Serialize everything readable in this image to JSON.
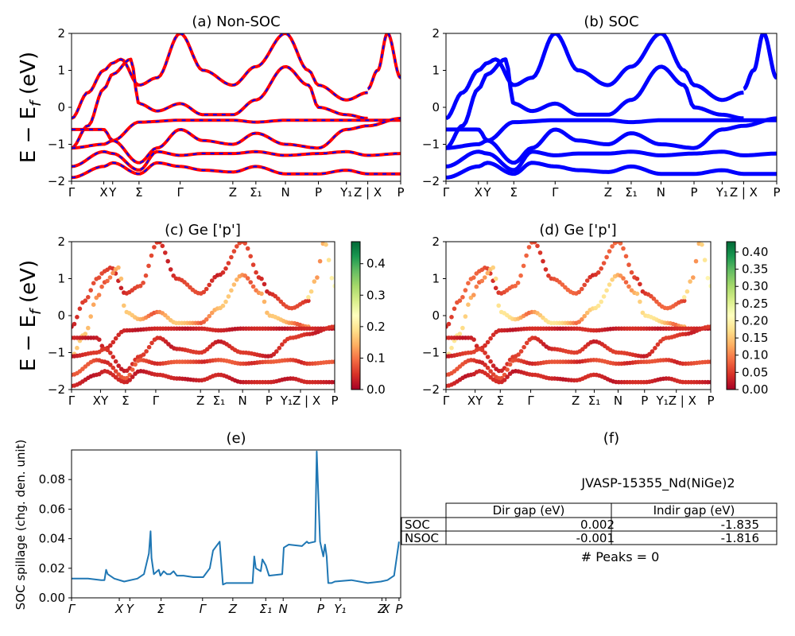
{
  "figure_title": "JVASP-15355_Nd(NiGe)2",
  "colors": {
    "nonsoc_base": "#ff0000",
    "nonsoc_dash": "#0000ff",
    "soc": "#0000ff",
    "spillage": "#1f77b4"
  },
  "chart_data": [
    {
      "id": "a",
      "type": "line",
      "title": "(a) Non-SOC",
      "ylabel": "E − E_f (eV)",
      "ylim": [
        -2,
        2
      ],
      "yticks": [
        "2",
        "1",
        "0",
        "−1",
        "−2"
      ],
      "xticks": [
        "Γ",
        "X",
        "Y",
        "Σ",
        "Γ",
        "Z",
        "Σ₁",
        "N",
        "P",
        "Y₁",
        "Z | X",
        "P"
      ],
      "xtick_positions": [
        0,
        0.098,
        0.125,
        0.205,
        0.33,
        0.49,
        0.56,
        0.65,
        0.75,
        0.835,
        0.9,
        1.0
      ],
      "style": "red line with blue dashes",
      "bands": [
        {
          "x": [
            0,
            0.05,
            0.098,
            0.125,
            0.15,
            0.205,
            0.26,
            0.33,
            0.4,
            0.49,
            0.56,
            0.65,
            0.72,
            0.75,
            0.835,
            0.9
          ],
          "y": [
            -0.3,
            0.4,
            1.0,
            1.2,
            1.3,
            0.6,
            0.8,
            2.0,
            1.0,
            0.6,
            1.1,
            2.0,
            1.0,
            0.6,
            0.2,
            0.4
          ]
        },
        {
          "x": [
            0,
            0.05,
            0.098,
            0.125,
            0.18,
            0.205,
            0.26,
            0.33,
            0.4,
            0.49,
            0.56,
            0.65,
            0.72,
            0.75,
            0.835,
            0.9
          ],
          "y": [
            -1.1,
            -0.5,
            0.5,
            0.9,
            1.3,
            0.1,
            -0.1,
            0.1,
            -0.2,
            -0.2,
            0.2,
            1.1,
            0.6,
            0.0,
            -0.2,
            -0.3
          ]
        },
        {
          "x": [
            0,
            0.098,
            0.125,
            0.205,
            0.33,
            0.4,
            0.49,
            0.56,
            0.65,
            0.75,
            0.835,
            0.9,
            1.0
          ],
          "y": [
            -0.6,
            -0.6,
            -0.9,
            -0.4,
            -0.35,
            -0.35,
            -0.35,
            -0.4,
            -0.35,
            -0.35,
            -0.35,
            -0.35,
            -0.35
          ]
        },
        {
          "x": [
            0,
            0.098,
            0.125,
            0.205,
            0.26,
            0.33,
            0.4,
            0.49,
            0.56,
            0.65,
            0.75,
            0.835,
            0.9,
            1.0
          ],
          "y": [
            -1.1,
            -1.0,
            -0.9,
            -1.5,
            -1.1,
            -0.6,
            -0.9,
            -1.0,
            -0.7,
            -1.0,
            -1.1,
            -0.6,
            -0.5,
            -0.3
          ]
        },
        {
          "x": [
            0,
            0.098,
            0.125,
            0.205,
            0.26,
            0.33,
            0.4,
            0.49,
            0.56,
            0.65,
            0.75,
            0.835,
            0.9,
            1.0
          ],
          "y": [
            -1.6,
            -1.2,
            -1.25,
            -1.7,
            -1.2,
            -1.3,
            -1.25,
            -1.25,
            -1.2,
            -1.3,
            -1.25,
            -1.2,
            -1.3,
            -1.25
          ]
        },
        {
          "x": [
            0,
            0.098,
            0.125,
            0.205,
            0.26,
            0.33,
            0.4,
            0.49,
            0.56,
            0.65,
            0.75,
            0.835,
            0.9,
            1.0
          ],
          "y": [
            -1.9,
            -1.6,
            -1.5,
            -1.8,
            -1.5,
            -1.6,
            -1.7,
            -1.75,
            -1.6,
            -1.8,
            -1.8,
            -1.7,
            -1.8,
            -1.8
          ]
        },
        {
          "x": [
            0.9,
            0.93,
            0.96,
            1.0
          ],
          "y": [
            0.5,
            1.0,
            2.0,
            0.8
          ]
        }
      ]
    },
    {
      "id": "b",
      "type": "line",
      "title": "(b) SOC",
      "ylim": [
        -2,
        2
      ],
      "yticks": [
        "2",
        "1",
        "0",
        "−1",
        "−2"
      ],
      "xticks": [
        "Γ",
        "X",
        "Y",
        "Σ",
        "Γ",
        "Z",
        "Σ₁",
        "N",
        "P",
        "Y₁",
        "Z | X",
        "P"
      ],
      "xtick_positions": [
        0,
        0.098,
        0.125,
        0.205,
        0.33,
        0.49,
        0.56,
        0.65,
        0.75,
        0.835,
        0.9,
        1.0
      ],
      "style": "thick blue line",
      "bands": [
        {
          "x": [
            0,
            0.05,
            0.098,
            0.125,
            0.15,
            0.205,
            0.26,
            0.33,
            0.4,
            0.49,
            0.56,
            0.65,
            0.72,
            0.75,
            0.835,
            0.9
          ],
          "y": [
            -0.3,
            0.4,
            1.0,
            1.2,
            1.3,
            0.6,
            0.8,
            2.0,
            1.0,
            0.6,
            1.1,
            2.0,
            1.0,
            0.6,
            0.2,
            0.4
          ]
        },
        {
          "x": [
            0,
            0.05,
            0.098,
            0.125,
            0.18,
            0.205,
            0.26,
            0.33,
            0.4,
            0.49,
            0.56,
            0.65,
            0.72,
            0.75,
            0.835,
            0.9
          ],
          "y": [
            -1.1,
            -0.5,
            0.5,
            0.9,
            1.3,
            0.1,
            -0.1,
            0.1,
            -0.2,
            -0.2,
            0.2,
            1.1,
            0.6,
            0.0,
            -0.2,
            -0.3
          ]
        },
        {
          "x": [
            0,
            0.098,
            0.125,
            0.205,
            0.33,
            0.4,
            0.49,
            0.56,
            0.65,
            0.75,
            0.835,
            0.9,
            1.0
          ],
          "y": [
            -0.6,
            -0.6,
            -0.9,
            -0.4,
            -0.35,
            -0.35,
            -0.35,
            -0.4,
            -0.35,
            -0.35,
            -0.35,
            -0.35,
            -0.35
          ]
        },
        {
          "x": [
            0,
            0.098,
            0.125,
            0.205,
            0.26,
            0.33,
            0.4,
            0.49,
            0.56,
            0.65,
            0.75,
            0.835,
            0.9,
            1.0
          ],
          "y": [
            -1.1,
            -1.0,
            -0.9,
            -1.5,
            -1.1,
            -0.6,
            -0.9,
            -1.0,
            -0.7,
            -1.0,
            -1.1,
            -0.6,
            -0.5,
            -0.3
          ]
        },
        {
          "x": [
            0,
            0.098,
            0.125,
            0.205,
            0.26,
            0.33,
            0.4,
            0.49,
            0.56,
            0.65,
            0.75,
            0.835,
            0.9,
            1.0
          ],
          "y": [
            -1.6,
            -1.2,
            -1.25,
            -1.7,
            -1.2,
            -1.3,
            -1.25,
            -1.25,
            -1.2,
            -1.3,
            -1.25,
            -1.2,
            -1.3,
            -1.25
          ]
        },
        {
          "x": [
            0,
            0.098,
            0.125,
            0.205,
            0.26,
            0.33,
            0.4,
            0.49,
            0.56,
            0.65,
            0.75,
            0.835,
            0.9,
            1.0
          ],
          "y": [
            -1.9,
            -1.6,
            -1.5,
            -1.8,
            -1.5,
            -1.6,
            -1.7,
            -1.75,
            -1.6,
            -1.8,
            -1.8,
            -1.7,
            -1.8,
            -1.8
          ]
        },
        {
          "x": [
            0.9,
            0.93,
            0.96,
            1.0
          ],
          "y": [
            0.5,
            1.0,
            2.0,
            0.8
          ]
        }
      ]
    },
    {
      "id": "c",
      "type": "scatter",
      "title": "(c)  Ge ['p']",
      "ylabel": "E − E_f (eV)",
      "ylim": [
        -2,
        2
      ],
      "yticks": [
        "2",
        "1",
        "0",
        "−1",
        "−2"
      ],
      "xticks": [
        "Γ",
        "XY",
        "Σ",
        "Γ",
        "Z",
        "Σ₁",
        "N",
        "P",
        "Y₁Z | X",
        "P"
      ],
      "xtick_positions": [
        0,
        0.11,
        0.205,
        0.32,
        0.49,
        0.56,
        0.65,
        0.75,
        0.87,
        1.0
      ],
      "colorbar": {
        "min": 0.0,
        "max": 0.47,
        "ticks": [
          "0.0",
          "0.1",
          "0.2",
          "0.3",
          "0.4"
        ],
        "tick_values": [
          0.0,
          0.1,
          0.2,
          0.3,
          0.4
        ],
        "colormap": "RdYlGn"
      },
      "weight_by_band": [
        0.05,
        0.12,
        0.03,
        0.04,
        0.06,
        0.03,
        0.18
      ]
    },
    {
      "id": "d",
      "type": "scatter",
      "title": "(d) Ge ['p']",
      "ylim": [
        -2,
        2
      ],
      "yticks": [
        "2",
        "1",
        "0",
        "−1",
        "−2"
      ],
      "xticks": [
        "Γ",
        "XY",
        "Σ",
        "Γ",
        "Z",
        "Σ₁",
        "N",
        "P",
        "Y₁Z | X",
        "P"
      ],
      "xtick_positions": [
        0,
        0.11,
        0.205,
        0.32,
        0.49,
        0.56,
        0.65,
        0.75,
        0.87,
        1.0
      ],
      "colorbar": {
        "min": 0.0,
        "max": 0.43,
        "ticks": [
          "0.00",
          "0.05",
          "0.10",
          "0.15",
          "0.20",
          "0.25",
          "0.30",
          "0.35",
          "0.40"
        ],
        "tick_values": [
          0.0,
          0.05,
          0.1,
          0.15,
          0.2,
          0.25,
          0.3,
          0.35,
          0.4
        ],
        "colormap": "RdYlGn"
      },
      "weight_by_band": [
        0.06,
        0.13,
        0.03,
        0.04,
        0.05,
        0.03,
        0.17
      ]
    },
    {
      "id": "e",
      "type": "line",
      "title": "(e)",
      "ylabel": "SOC spillage (chg. den. unit)",
      "ylim": [
        0,
        0.1
      ],
      "yticks": [
        "0.00",
        "0.02",
        "0.04",
        "0.06",
        "0.08"
      ],
      "ytick_values": [
        0.0,
        0.02,
        0.04,
        0.06,
        0.08
      ],
      "xticks": [
        "Γ",
        "X",
        "Y",
        "Σ",
        "Γ",
        "Z",
        "Σ₁",
        "N",
        "P",
        "Y₁",
        "Z",
        "X",
        "P"
      ],
      "xtick_positions": [
        0,
        0.145,
        0.177,
        0.272,
        0.398,
        0.49,
        0.59,
        0.643,
        0.757,
        0.816,
        0.943,
        0.955,
        0.995
      ],
      "x": [
        0,
        0.05,
        0.09,
        0.1,
        0.105,
        0.11,
        0.13,
        0.16,
        0.2,
        0.22,
        0.235,
        0.24,
        0.243,
        0.25,
        0.265,
        0.27,
        0.28,
        0.29,
        0.3,
        0.31,
        0.32,
        0.33,
        0.34,
        0.37,
        0.4,
        0.42,
        0.43,
        0.45,
        0.46,
        0.47,
        0.5,
        0.55,
        0.555,
        0.56,
        0.575,
        0.58,
        0.59,
        0.6,
        0.64,
        0.645,
        0.66,
        0.7,
        0.715,
        0.72,
        0.74,
        0.745,
        0.755,
        0.765,
        0.77,
        0.775,
        0.78,
        0.785,
        0.79,
        0.8,
        0.85,
        0.9,
        0.94,
        0.96,
        0.98,
        0.995
      ],
      "y": [
        0.013,
        0.013,
        0.012,
        0.012,
        0.019,
        0.016,
        0.013,
        0.011,
        0.013,
        0.016,
        0.03,
        0.045,
        0.027,
        0.016,
        0.019,
        0.015,
        0.018,
        0.016,
        0.016,
        0.018,
        0.015,
        0.015,
        0.015,
        0.014,
        0.014,
        0.02,
        0.032,
        0.038,
        0.009,
        0.01,
        0.01,
        0.01,
        0.028,
        0.02,
        0.018,
        0.026,
        0.022,
        0.015,
        0.016,
        0.034,
        0.036,
        0.035,
        0.038,
        0.037,
        0.038,
        0.099,
        0.038,
        0.028,
        0.036,
        0.028,
        0.01,
        0.01,
        0.01,
        0.011,
        0.012,
        0.01,
        0.011,
        0.012,
        0.015,
        0.038
      ]
    }
  ],
  "table": {
    "panel_title": "(f)",
    "headers": [
      "",
      "Dir gap (eV)",
      "Indir gap (eV)"
    ],
    "rows": [
      {
        "label": "SOC",
        "dir": "0.002",
        "indir": "-1.835"
      },
      {
        "label": "NSOC",
        "dir": "-0.001",
        "indir": "-1.816"
      }
    ],
    "peaks": "# Peaks = 0"
  }
}
